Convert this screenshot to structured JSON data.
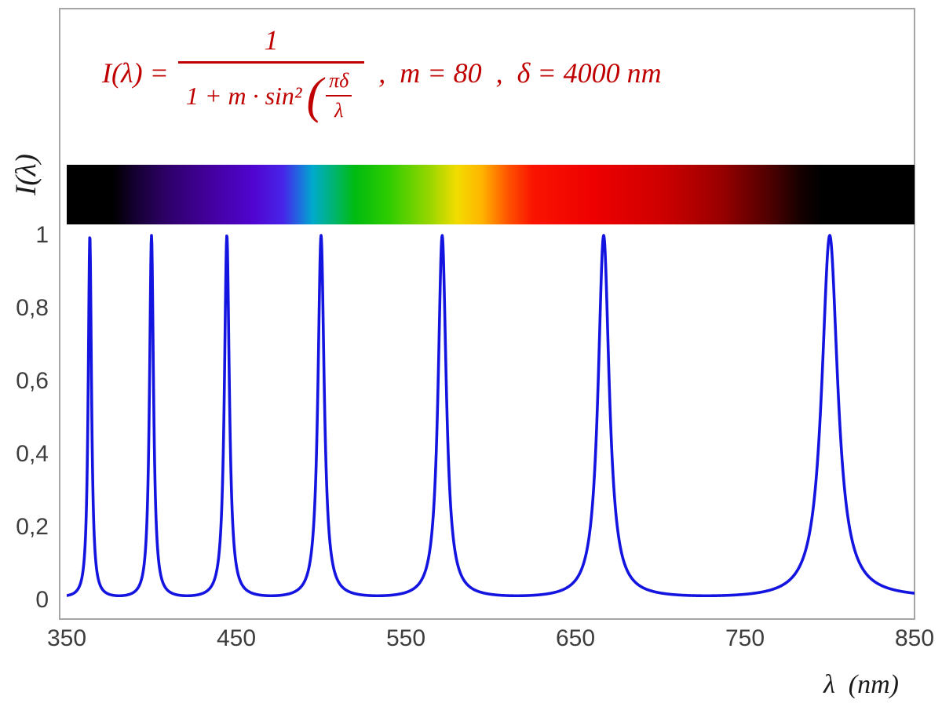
{
  "chart_data": {
    "type": "line",
    "title": "",
    "formula_text": "I(λ) = 1 / (1 + m·sin²(πδ/λ))",
    "params": {
      "m": 80,
      "delta_nm": 4000
    },
    "x_range": [
      350,
      850
    ],
    "x_ticks": [
      350,
      450,
      550,
      650,
      750,
      850
    ],
    "y_range": [
      0,
      1
    ],
    "y_ticks": [
      {
        "label": "1",
        "value": 1
      },
      {
        "label": "0,8",
        "value": 0.8
      },
      {
        "label": "0,6",
        "value": 0.6
      },
      {
        "label": "0,4",
        "value": 0.4
      },
      {
        "label": "0,2",
        "value": 0.2
      },
      {
        "label": "0",
        "value": 0
      }
    ],
    "xlabel": "λ  (nm)",
    "ylabel": "I(λ)",
    "peak_wavelengths_nm": [
      363.6,
      400,
      444.4,
      500,
      571.4,
      666.7,
      800
    ],
    "peak_value": 1,
    "baseline_value": 0.0123,
    "line_color": "#1414e0",
    "border_color": "#a6a6a6",
    "tick_color": "#3d3d3d",
    "grid": false,
    "legend": false,
    "spectrum_gradient": [
      {
        "pos": 0,
        "color": "#000000"
      },
      {
        "pos": 5.5,
        "color": "#000000"
      },
      {
        "pos": 8,
        "color": "#140030"
      },
      {
        "pos": 12,
        "color": "#2f006b"
      },
      {
        "pos": 17,
        "color": "#44009f"
      },
      {
        "pos": 22,
        "color": "#5004cf"
      },
      {
        "pos": 25.5,
        "color": "#4824e8"
      },
      {
        "pos": 27.5,
        "color": "#1e6ee0"
      },
      {
        "pos": 29,
        "color": "#00aacc"
      },
      {
        "pos": 31.5,
        "color": "#00b470"
      },
      {
        "pos": 34,
        "color": "#00bb10"
      },
      {
        "pos": 38,
        "color": "#2ecc00"
      },
      {
        "pos": 43,
        "color": "#9cd600"
      },
      {
        "pos": 46,
        "color": "#f2dc00"
      },
      {
        "pos": 49,
        "color": "#ffb300"
      },
      {
        "pos": 52,
        "color": "#ff5500"
      },
      {
        "pos": 55,
        "color": "#fa1400"
      },
      {
        "pos": 62,
        "color": "#ee0000"
      },
      {
        "pos": 70,
        "color": "#cf0000"
      },
      {
        "pos": 77,
        "color": "#9b0000"
      },
      {
        "pos": 83,
        "color": "#4d0000"
      },
      {
        "pos": 86.5,
        "color": "#160000"
      },
      {
        "pos": 89,
        "color": "#000000"
      },
      {
        "pos": 100,
        "color": "#000000"
      }
    ]
  },
  "formula": {
    "color": "#c00000",
    "lhs": "I(λ) =",
    "numerator": "1",
    "den_prefix": "1 + m · sin²",
    "paren_open": "(",
    "inner_num": "πδ",
    "inner_den": "λ",
    "sep1": ",",
    "m_eq": "m = 80",
    "sep2": ",",
    "delta_eq": "δ = 4000 nm"
  }
}
